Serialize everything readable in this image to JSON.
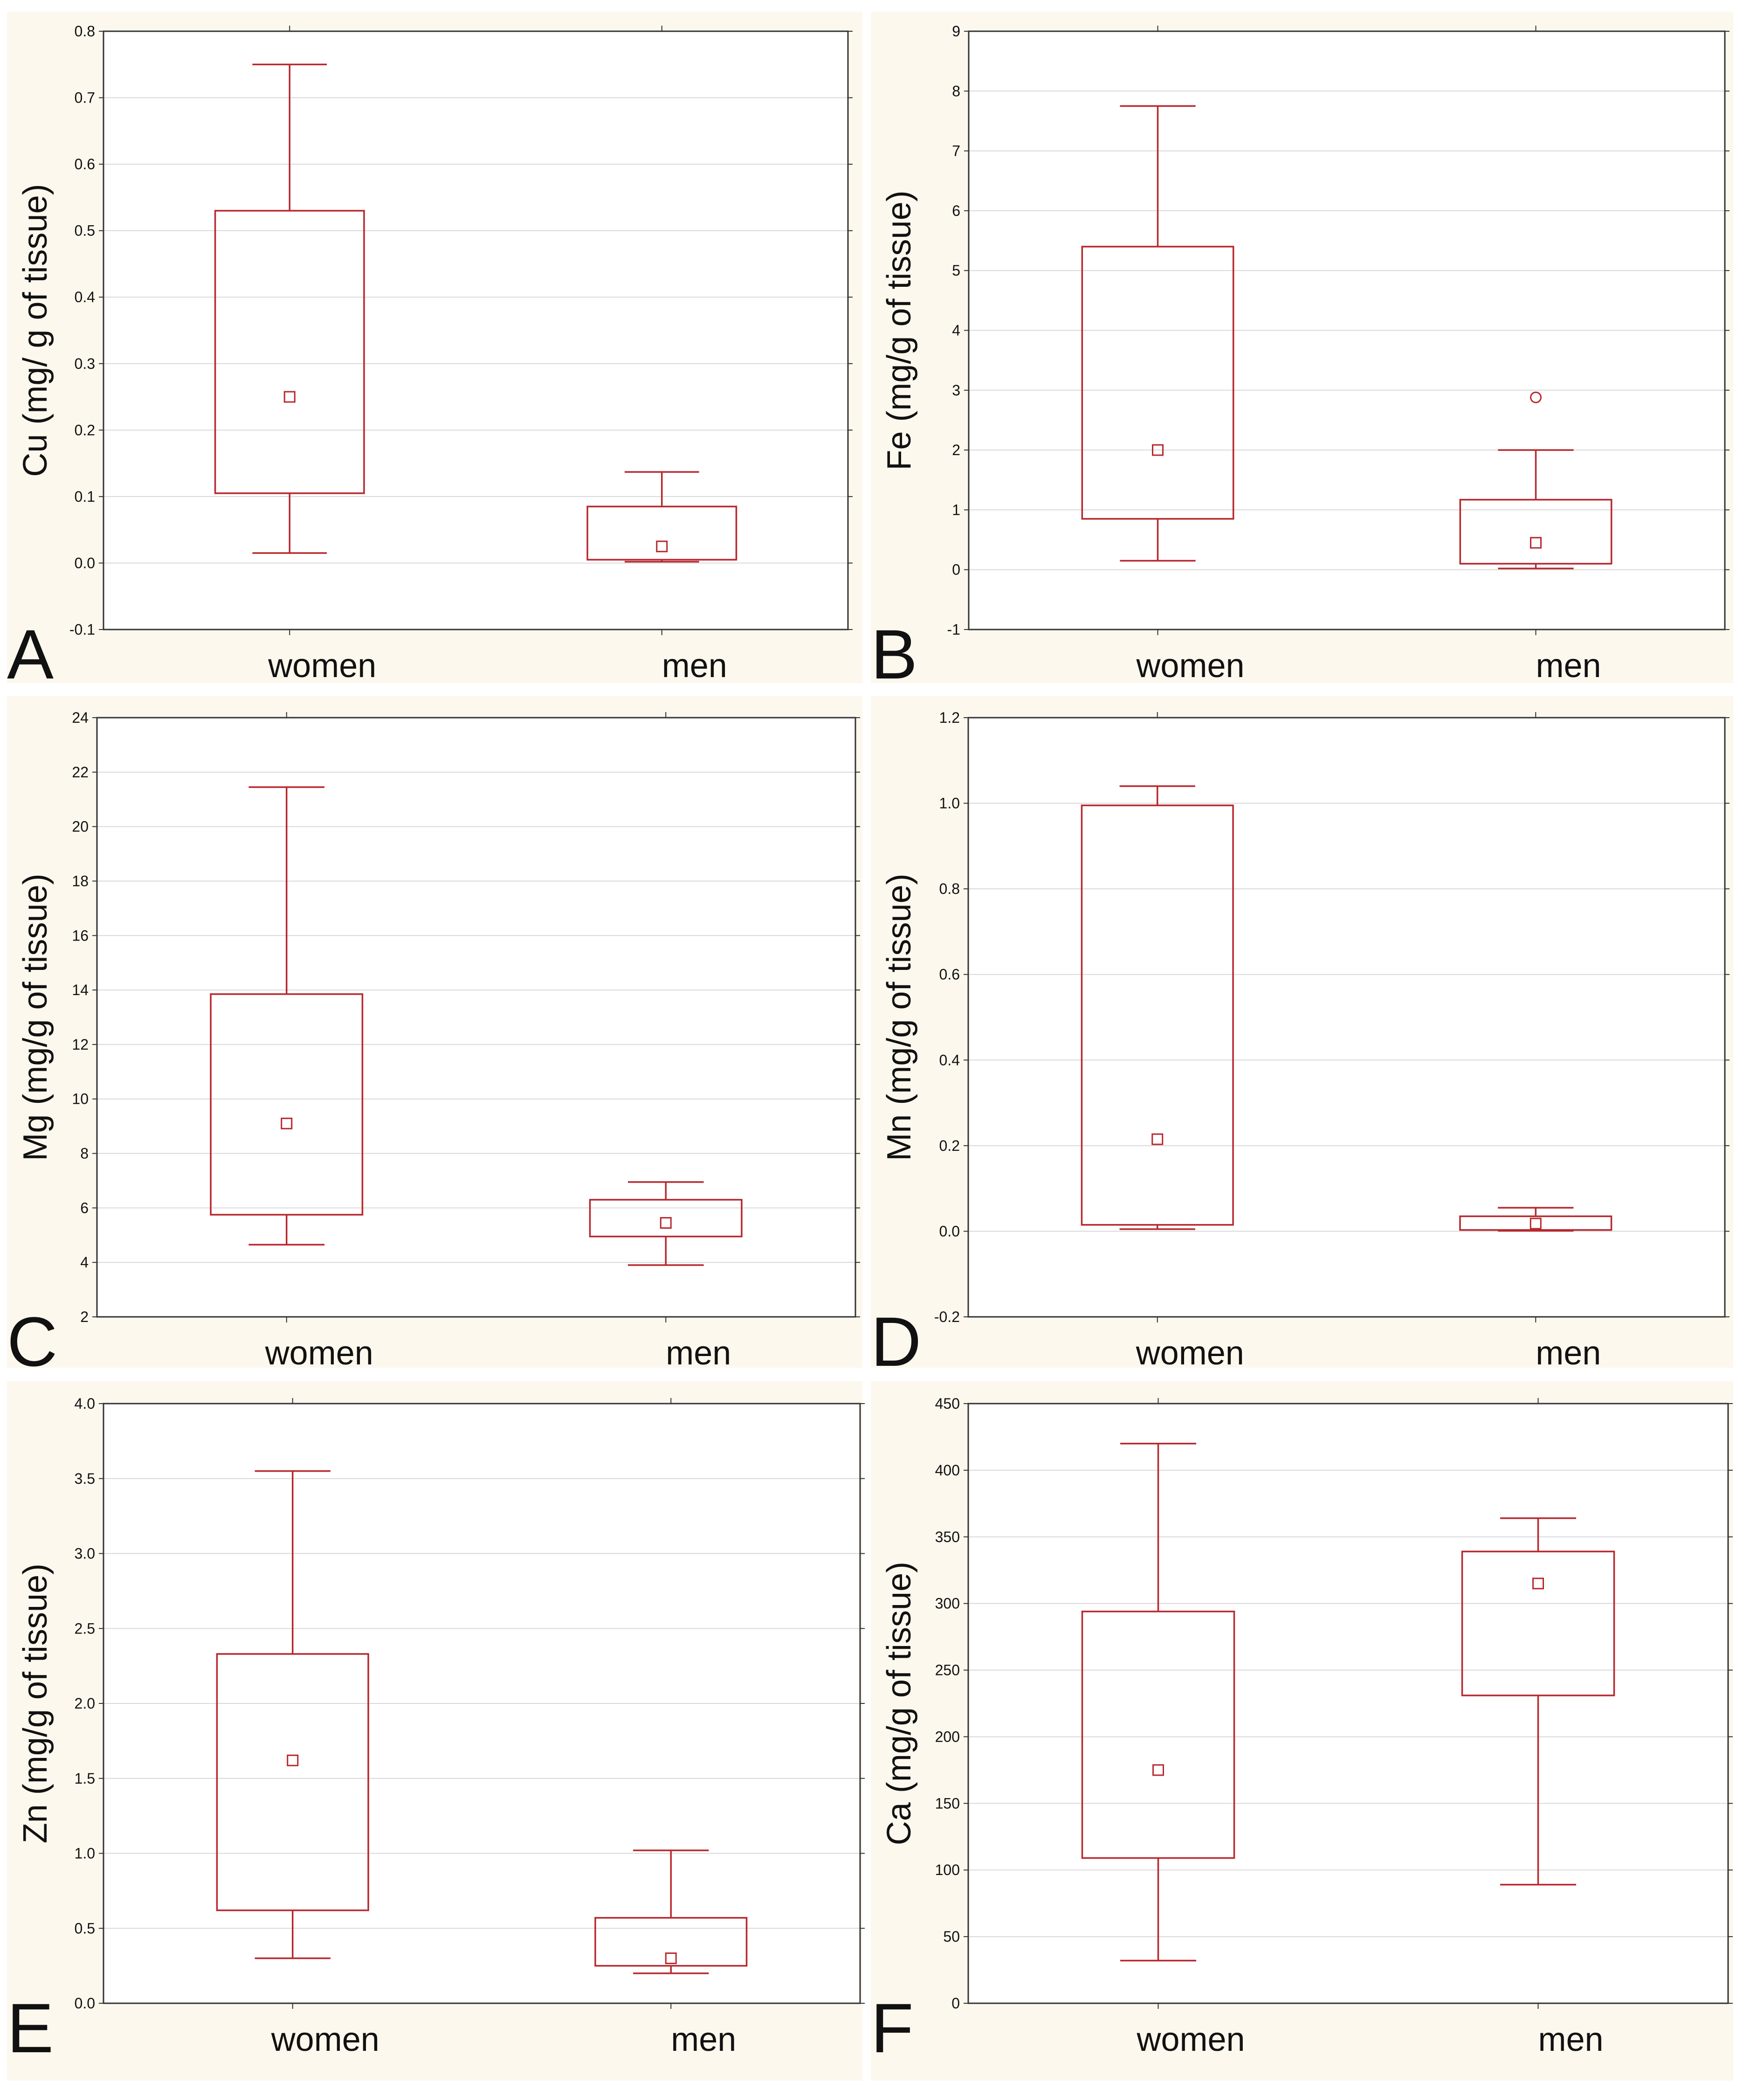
{
  "figure": {
    "colors": {
      "background": "#fdf8ee",
      "box": "#b8282e",
      "grid": "#d9d9d9",
      "frame": "#333333"
    }
  },
  "chart_data": [
    {
      "panel": "A",
      "type": "boxplot",
      "ylabel": "Cu (mg/ g of tissue)",
      "categories": [
        "women",
        "men"
      ],
      "ylim": [
        -0.1,
        0.8
      ],
      "yticks": [
        "-0.1",
        "0.0",
        "0.1",
        "0.2",
        "0.3",
        "0.4",
        "0.5",
        "0.6",
        "0.7",
        "0.8"
      ],
      "series": [
        {
          "name": "women",
          "whisker_low": 0.015,
          "box_low": 0.105,
          "median": 0.25,
          "box_high": 0.53,
          "whisker_high": 0.75,
          "outliers": []
        },
        {
          "name": "men",
          "whisker_low": 0.002,
          "box_low": 0.005,
          "median": 0.025,
          "box_high": 0.085,
          "whisker_high": 0.137,
          "outliers": []
        }
      ]
    },
    {
      "panel": "B",
      "type": "boxplot",
      "ylabel": "Fe (mg/g of tissue)",
      "categories": [
        "women",
        "men"
      ],
      "ylim": [
        -1,
        9
      ],
      "yticks": [
        "-1",
        "0",
        "1",
        "2",
        "3",
        "4",
        "5",
        "6",
        "7",
        "8",
        "9"
      ],
      "series": [
        {
          "name": "women",
          "whisker_low": 0.15,
          "box_low": 0.85,
          "median": 2.0,
          "box_high": 5.4,
          "whisker_high": 7.75,
          "outliers": []
        },
        {
          "name": "men",
          "whisker_low": 0.02,
          "box_low": 0.1,
          "median": 0.45,
          "box_high": 1.17,
          "whisker_high": 2.0,
          "outliers": [
            2.88
          ]
        }
      ]
    },
    {
      "panel": "C",
      "type": "boxplot",
      "ylabel": "Mg (mg/g of tissue)",
      "categories": [
        "women",
        "men"
      ],
      "ylim": [
        2,
        24
      ],
      "yticks": [
        "2",
        "4",
        "6",
        "8",
        "10",
        "12",
        "14",
        "16",
        "18",
        "20",
        "22",
        "24"
      ],
      "series": [
        {
          "name": "women",
          "whisker_low": 4.65,
          "box_low": 5.75,
          "median": 9.1,
          "box_high": 13.85,
          "whisker_high": 21.45,
          "outliers": []
        },
        {
          "name": "men",
          "whisker_low": 3.9,
          "box_low": 4.95,
          "median": 5.45,
          "box_high": 6.3,
          "whisker_high": 6.95,
          "outliers": []
        }
      ]
    },
    {
      "panel": "D",
      "type": "boxplot",
      "ylabel": "Mn (mg/g of tissue)",
      "categories": [
        "women",
        "men"
      ],
      "ylim": [
        -0.2,
        1.2
      ],
      "yticks": [
        "-0.2",
        "0.0",
        "0.2",
        "0.4",
        "0.6",
        "0.8",
        "1.0",
        "1.2"
      ],
      "series": [
        {
          "name": "women",
          "whisker_low": 0.005,
          "box_low": 0.015,
          "median": 0.215,
          "box_high": 0.995,
          "whisker_high": 1.04,
          "outliers": []
        },
        {
          "name": "men",
          "whisker_low": 0.001,
          "box_low": 0.003,
          "median": 0.018,
          "box_high": 0.035,
          "whisker_high": 0.055,
          "outliers": []
        }
      ]
    },
    {
      "panel": "E",
      "type": "boxplot",
      "ylabel": "Zn (mg/g of tissue)",
      "categories": [
        "women",
        "men"
      ],
      "ylim": [
        0.0,
        4.0
      ],
      "yticks": [
        "0.0",
        "0.5",
        "1.0",
        "1.5",
        "2.0",
        "2.5",
        "3.0",
        "3.5",
        "4.0"
      ],
      "series": [
        {
          "name": "women",
          "whisker_low": 0.3,
          "box_low": 0.62,
          "median": 1.62,
          "box_high": 2.33,
          "whisker_high": 3.55,
          "outliers": []
        },
        {
          "name": "men",
          "whisker_low": 0.2,
          "box_low": 0.25,
          "median": 0.3,
          "box_high": 0.57,
          "whisker_high": 1.02,
          "outliers": []
        }
      ]
    },
    {
      "panel": "F",
      "type": "boxplot",
      "ylabel": "Ca (mg/g of tissue)",
      "categories": [
        "women",
        "men"
      ],
      "ylim": [
        0,
        450
      ],
      "yticks": [
        "0",
        "50",
        "100",
        "150",
        "200",
        "250",
        "300",
        "350",
        "400",
        "450"
      ],
      "series": [
        {
          "name": "women",
          "whisker_low": 32,
          "box_low": 109,
          "median": 175,
          "box_high": 294,
          "whisker_high": 420,
          "outliers": []
        },
        {
          "name": "men",
          "whisker_low": 89,
          "box_low": 231,
          "median": 315,
          "box_high": 339,
          "whisker_high": 364,
          "outliers": []
        }
      ]
    }
  ]
}
